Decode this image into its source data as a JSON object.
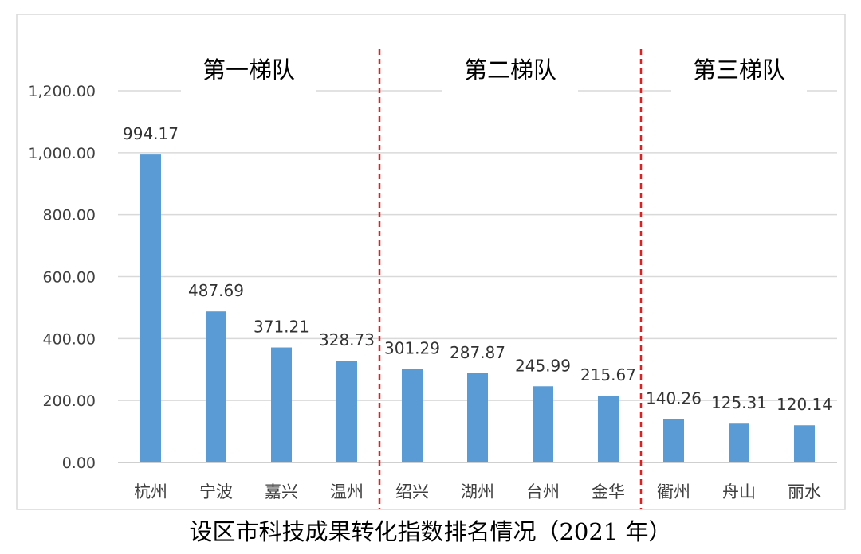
{
  "chart_data": {
    "type": "bar",
    "title": "设区市科技成果转化指数排名情况（2021 年）",
    "categories": [
      "杭州",
      "宁波",
      "嘉兴",
      "温州",
      "绍兴",
      "湖州",
      "台州",
      "金华",
      "衢州",
      "舟山",
      "丽水"
    ],
    "values": [
      994.17,
      487.69,
      371.21,
      328.73,
      301.29,
      287.87,
      245.99,
      215.67,
      140.26,
      125.31,
      120.14
    ],
    "data_labels": [
      "994.17",
      "487.69",
      "371.21",
      "328.73",
      "301.29",
      "287.87",
      "245.99",
      "215.67",
      "140.26",
      "125.31",
      "120.14"
    ],
    "y_ticks": [
      0,
      200,
      400,
      600,
      800,
      1000,
      1200
    ],
    "y_tick_labels": [
      "0.00",
      "200.00",
      "400.00",
      "600.00",
      "800.00",
      "1,000.00",
      "1,200.00"
    ],
    "ylim": [
      0,
      1200
    ],
    "grid": true,
    "bar_color": "#5b9bd5",
    "grid_color": "#d9d9d9",
    "divider_color": "#e02020",
    "groups": [
      {
        "label": "第一梯队",
        "start": 0,
        "end": 3
      },
      {
        "label": "第二梯队",
        "start": 4,
        "end": 7
      },
      {
        "label": "第三梯队",
        "start": 8,
        "end": 10
      }
    ]
  }
}
